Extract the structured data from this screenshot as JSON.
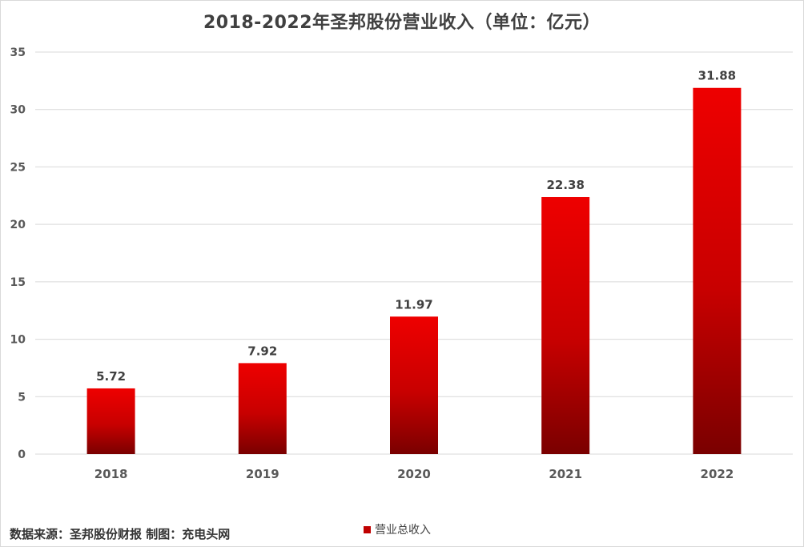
{
  "chart_data": {
    "type": "bar",
    "title": "2018-2022年圣邦股份营业收入（单位：亿元）",
    "categories": [
      "2018",
      "2019",
      "2020",
      "2021",
      "2022"
    ],
    "series": [
      {
        "name": "营业总收入",
        "values": [
          5.72,
          7.92,
          11.97,
          22.38,
          31.88
        ]
      }
    ],
    "data_labels": [
      "5.72",
      "7.92",
      "11.97",
      "22.38",
      "31.88"
    ],
    "yticks": [
      "0",
      "5",
      "10",
      "15",
      "20",
      "25",
      "30",
      "35"
    ],
    "ylim": [
      0,
      35
    ],
    "grid": true,
    "legend_position": "bottom",
    "colors": {
      "bar_top": "#ee0000",
      "bar_bottom": "#7a0000",
      "legend": "#c00000"
    }
  },
  "source_text": "数据来源：圣邦股份财报 制图：充电头网"
}
